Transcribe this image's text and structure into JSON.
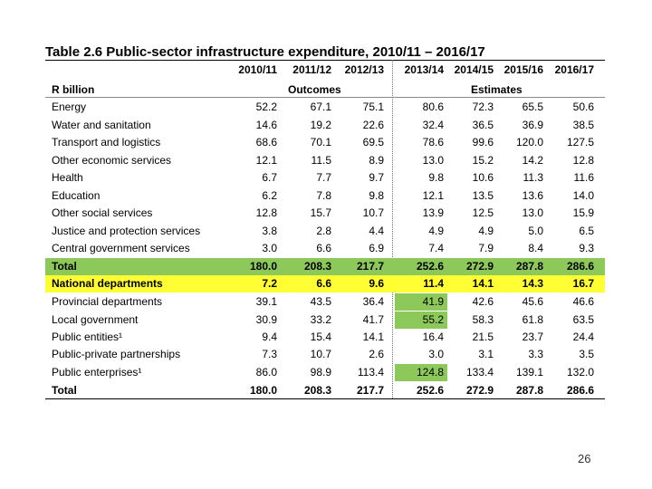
{
  "title": "Table 2.6  Public-sector infrastructure expenditure, 2010/11 – 2016/17",
  "years": [
    "2010/11",
    "2011/12",
    "2012/13",
    "2013/14",
    "2014/15",
    "2015/16",
    "2016/17"
  ],
  "unit_label": "R billion",
  "group_outcomes": "Outcomes",
  "group_estimates": "Estimates",
  "rows": [
    {
      "label": "Energy",
      "values": [
        "52.2",
        "67.1",
        "75.1",
        "80.6",
        "72.3",
        "65.5",
        "50.6"
      ]
    },
    {
      "label": "Water and sanitation",
      "values": [
        "14.6",
        "19.2",
        "22.6",
        "32.4",
        "36.5",
        "36.9",
        "38.5"
      ]
    },
    {
      "label": "Transport and logistics",
      "values": [
        "68.6",
        "70.1",
        "69.5",
        "78.6",
        "99.6",
        "120.0",
        "127.5"
      ]
    },
    {
      "label": "Other economic services",
      "values": [
        "12.1",
        "11.5",
        "8.9",
        "13.0",
        "15.2",
        "14.2",
        "12.8"
      ]
    },
    {
      "label": "Health",
      "values": [
        "6.7",
        "7.7",
        "9.7",
        "9.8",
        "10.6",
        "11.3",
        "11.6"
      ]
    },
    {
      "label": "Education",
      "values": [
        "6.2",
        "7.8",
        "9.8",
        "12.1",
        "13.5",
        "13.6",
        "14.0"
      ]
    },
    {
      "label": "Other social services",
      "values": [
        "12.8",
        "15.7",
        "10.7",
        "13.9",
        "12.5",
        "13.0",
        "15.9"
      ]
    },
    {
      "label": "Justice and protection services",
      "values": [
        "3.8",
        "2.8",
        "4.4",
        "4.9",
        "4.9",
        "5.0",
        "6.5"
      ]
    },
    {
      "label": "Central government services",
      "values": [
        "3.0",
        "6.6",
        "6.9",
        "7.4",
        "7.9",
        "8.4",
        "9.3"
      ]
    },
    {
      "label": "Total",
      "values": [
        "180.0",
        "208.3",
        "217.7",
        "252.6",
        "272.9",
        "287.8",
        "286.6"
      ],
      "bold": true,
      "highlight": "#8cc85a"
    },
    {
      "label": "National departments",
      "values": [
        "7.2",
        "6.6",
        "9.6",
        "11.4",
        "14.1",
        "14.3",
        "16.7"
      ],
      "bold": true,
      "highlight": "#ffff33"
    },
    {
      "label": "Provincial departments",
      "values": [
        "39.1",
        "43.5",
        "36.4",
        "41.9",
        "42.6",
        "45.6",
        "46.6"
      ],
      "cellHighlight": 3
    },
    {
      "label": "Local government",
      "values": [
        "30.9",
        "33.2",
        "41.7",
        "55.2",
        "58.3",
        "61.8",
        "63.5"
      ],
      "cellHighlight": 3
    },
    {
      "label": "Public entities¹",
      "values": [
        "9.4",
        "15.4",
        "14.1",
        "16.4",
        "21.5",
        "23.7",
        "24.4"
      ]
    },
    {
      "label": "Public-private partnerships",
      "values": [
        "7.3",
        "10.7",
        "2.6",
        "3.0",
        "3.1",
        "3.3",
        "3.5"
      ]
    },
    {
      "label": "Public enterprises¹",
      "values": [
        "86.0",
        "98.9",
        "113.4",
        "124.8",
        "133.4",
        "139.1",
        "132.0"
      ],
      "cellHighlight": 3
    },
    {
      "label": "Total",
      "values": [
        "180.0",
        "208.3",
        "217.7",
        "252.6",
        "272.9",
        "287.8",
        "286.6"
      ],
      "bold": true
    }
  ],
  "colors": {
    "green": "#8cc85a",
    "yellow": "#ffff33"
  },
  "page_number": "26"
}
